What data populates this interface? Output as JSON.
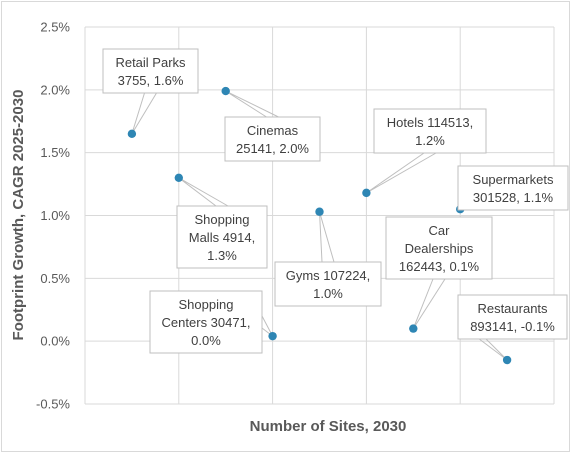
{
  "chart_data": {
    "type": "scatter",
    "xlabel": "Number of Sites, 2030",
    "ylabel": "Footprint Growth, CAGR 2025-2030",
    "ylim": [
      -0.005,
      0.025
    ],
    "y_ticks": [
      "2.5%",
      "2.0%",
      "1.5%",
      "1.0%",
      "0.5%",
      "0.0%",
      "-0.5%"
    ],
    "y_tick_values": [
      0.025,
      0.02,
      0.015,
      0.01,
      0.005,
      0.0,
      -0.005
    ],
    "grid": true,
    "marker_color": "#2e86b4",
    "points": [
      {
        "name": "Retail Parks",
        "rank": 1,
        "y": 0.0165,
        "label_lines": [
          "Retail Parks",
          "3755, 1.6%"
        ]
      },
      {
        "name": "Shopping Malls",
        "rank": 2,
        "y": 0.013,
        "label_lines": [
          "Shopping",
          "Malls 4914,",
          "1.3%"
        ]
      },
      {
        "name": "Cinemas",
        "rank": 3,
        "y": 0.0199,
        "label_lines": [
          "Cinemas",
          "25141, 2.0%"
        ]
      },
      {
        "name": "Shopping Centers",
        "rank": 4,
        "y": 0.0004,
        "label_lines": [
          "Shopping",
          "Centers 30471,",
          "0.0%"
        ]
      },
      {
        "name": "Gyms",
        "rank": 5,
        "y": 0.0103,
        "label_lines": [
          "Gyms 107224,",
          "1.0%"
        ]
      },
      {
        "name": "Hotels",
        "rank": 6,
        "y": 0.0118,
        "label_lines": [
          "Hotels 114513,",
          "1.2%"
        ]
      },
      {
        "name": "Car Dealerships",
        "rank": 7,
        "y": 0.001,
        "label_lines": [
          "Car",
          "Dealerships",
          "162443, 0.1%"
        ]
      },
      {
        "name": "Supermarkets",
        "rank": 8,
        "y": 0.0105,
        "label_lines": [
          "Supermarkets",
          "301528, 1.1%"
        ]
      },
      {
        "name": "Restaurants",
        "rank": 9,
        "y": -0.0015,
        "label_lines": [
          "Restaurants",
          "893141, -0.1%"
        ]
      }
    ]
  }
}
